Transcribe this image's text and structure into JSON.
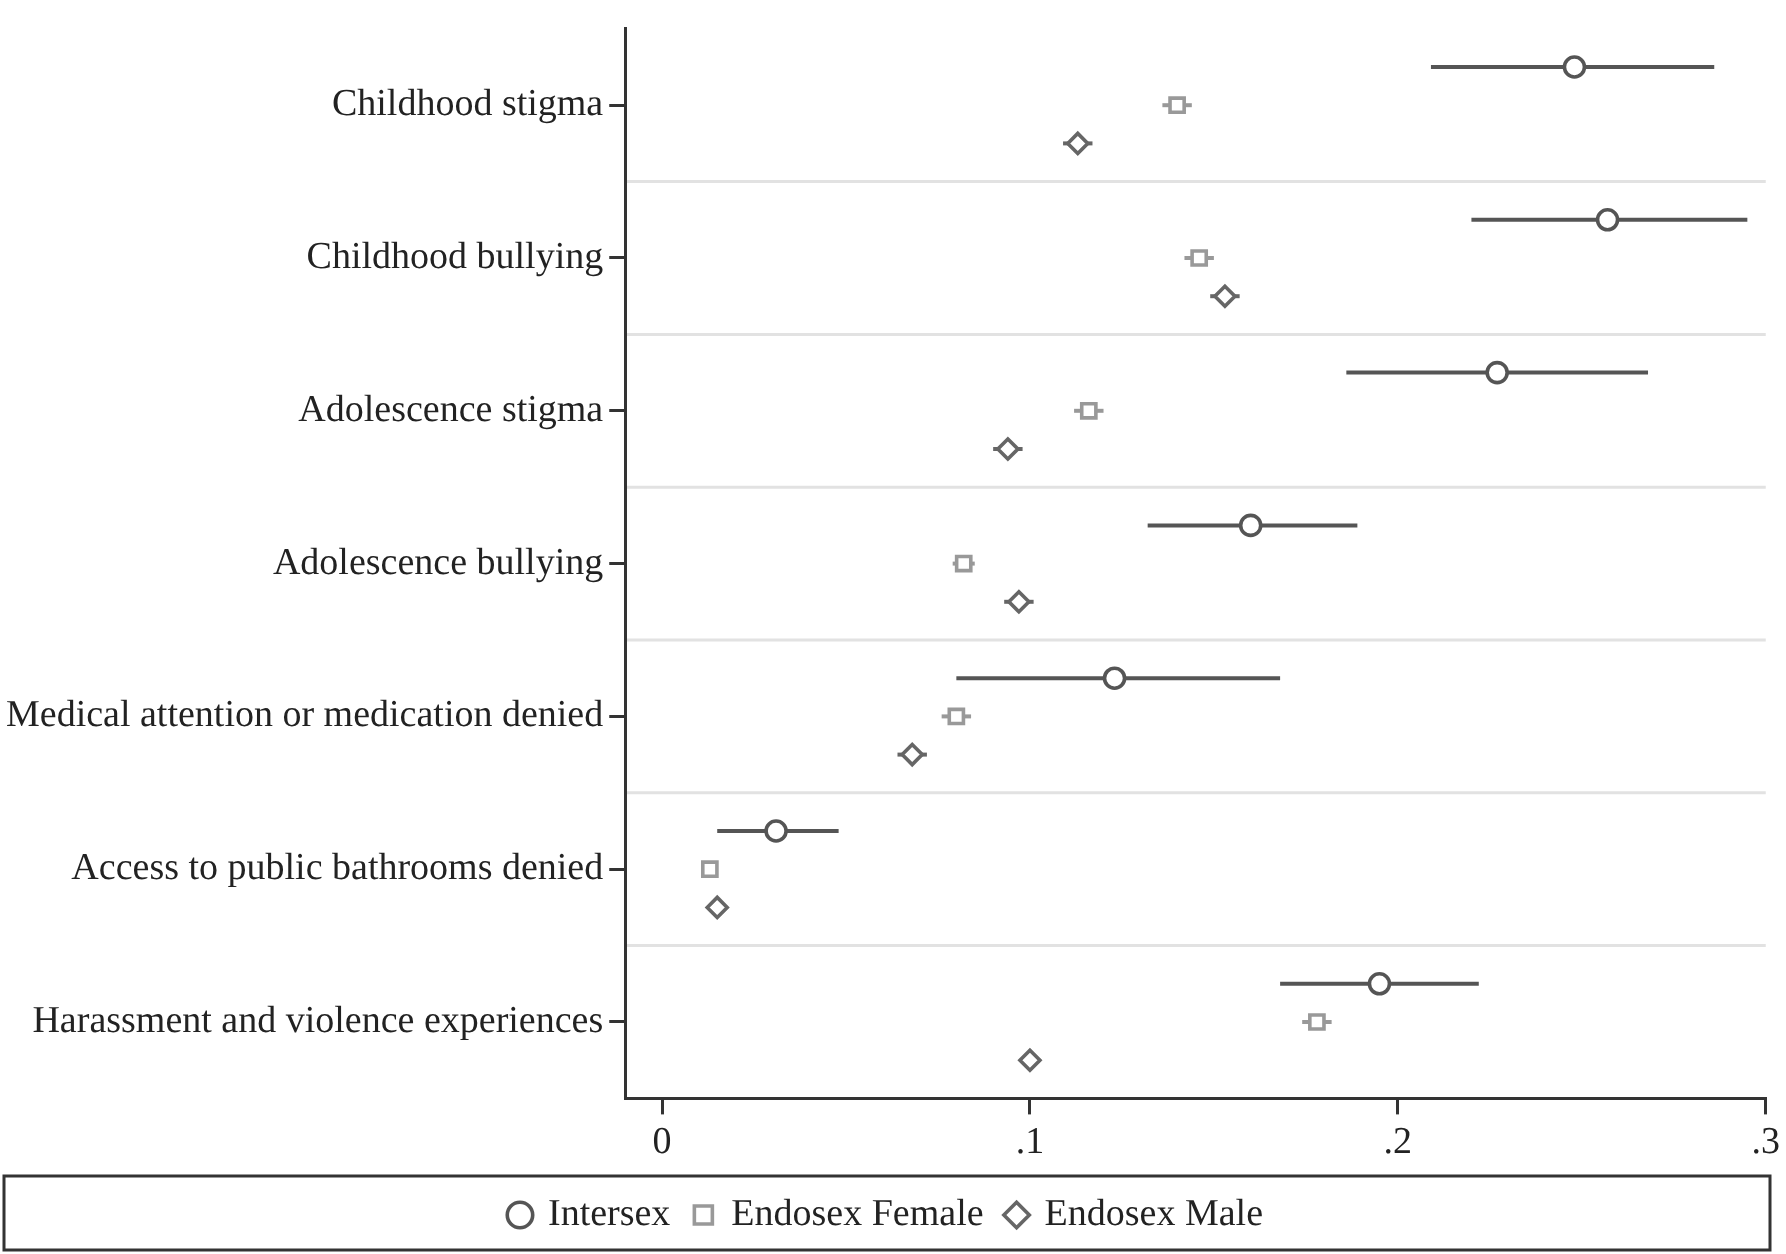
{
  "chart_data": {
    "type": "scatter",
    "orientation": "horizontal",
    "categories": [
      "Childhood stigma",
      "Childhood bullying",
      "Adolescence stigma",
      "Adolescence bullying",
      "Medical attention or medication denied",
      "Access to public bathrooms denied",
      "Harassment and violence experiences"
    ],
    "series": [
      {
        "name": "Intersex",
        "color": "#555555",
        "marker": "circle",
        "values": [
          0.248,
          0.257,
          0.227,
          0.16,
          0.123,
          0.031,
          0.195
        ],
        "errors": [
          [
            0.209,
            0.286
          ],
          [
            0.22,
            0.295
          ],
          [
            0.186,
            0.268
          ],
          [
            0.132,
            0.189
          ],
          [
            0.08,
            0.168
          ],
          [
            0.015,
            0.048
          ],
          [
            0.168,
            0.222
          ]
        ]
      },
      {
        "name": "Endosex Female",
        "color": "#999999",
        "marker": "square",
        "values": [
          0.14,
          0.146,
          0.116,
          0.082,
          0.08,
          0.013,
          0.178
        ],
        "errors": [
          0.004,
          0.004,
          0.004,
          0.003,
          0.004,
          null,
          0.004
        ]
      },
      {
        "name": "Endosex Male",
        "color": "#666666",
        "marker": "diamond",
        "values": [
          0.113,
          0.153,
          0.094,
          0.097,
          0.068,
          0.015,
          0.1
        ],
        "errors": [
          0.004,
          0.004,
          0.004,
          0.004,
          0.004,
          null,
          null
        ]
      }
    ],
    "xlim": [
      -0.01,
      0.3
    ],
    "xticks": [
      0,
      {
        "value": 0.1,
        "label": ".1"
      },
      {
        "value": 0.2,
        "label": ".2"
      },
      {
        "value": 0.3,
        "label": ".3"
      }
    ],
    "grid": "y",
    "legend": "bottom"
  }
}
